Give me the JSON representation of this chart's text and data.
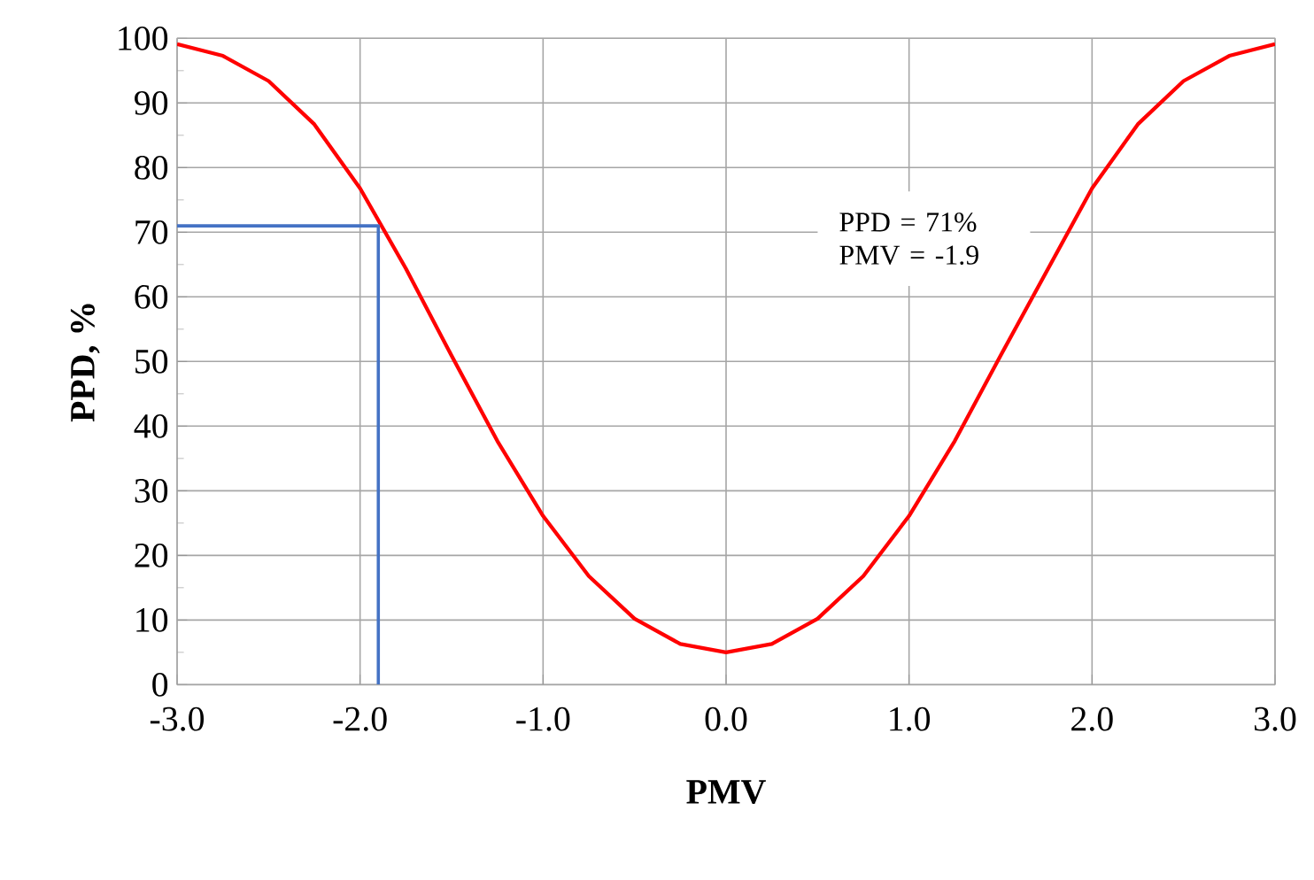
{
  "chart_data": {
    "type": "line",
    "xlabel": "PMV",
    "ylabel": "PPD, %",
    "xlim": [
      -3,
      3
    ],
    "ylim": [
      0,
      100
    ],
    "xticks": [
      {
        "value": -3,
        "label": "-3.0"
      },
      {
        "value": -2,
        "label": "-2.0"
      },
      {
        "value": -1,
        "label": "-1.0"
      },
      {
        "value": 0,
        "label": "0.0"
      },
      {
        "value": 1,
        "label": "1.0"
      },
      {
        "value": 2,
        "label": "2.0"
      },
      {
        "value": 3,
        "label": "3.0"
      }
    ],
    "yticks": [
      0,
      10,
      20,
      30,
      40,
      50,
      60,
      70,
      80,
      90,
      100
    ],
    "grid": true,
    "marker": "none",
    "line_style": "solid",
    "series": [
      {
        "color": "#ff0000",
        "x": [
          -3,
          -2.75,
          -2.5,
          -2.25,
          -2,
          -1.75,
          -1.5,
          -1.25,
          -1,
          -0.75,
          -0.5,
          -0.25,
          0,
          0.25,
          0.5,
          0.75,
          1,
          1.25,
          1.5,
          1.75,
          2,
          2.25,
          2.5,
          2.75,
          3
        ],
        "values": [
          99.1,
          97.3,
          93.4,
          86.7,
          76.8,
          64.4,
          50.9,
          37.7,
          26.1,
          16.8,
          10.2,
          6.3,
          5,
          6.3,
          10.2,
          16.8,
          26.1,
          37.7,
          50.9,
          null,
          76.8,
          86.7,
          93.4,
          97.3,
          99.1
        ]
      },
      {
        "color": "#4472c4",
        "x": [
          -3,
          -1.9,
          -1.9
        ],
        "values": [
          71,
          71,
          0
        ]
      }
    ],
    "annotations": [
      "PPD = 71%",
      "PMV = -1.9"
    ]
  }
}
